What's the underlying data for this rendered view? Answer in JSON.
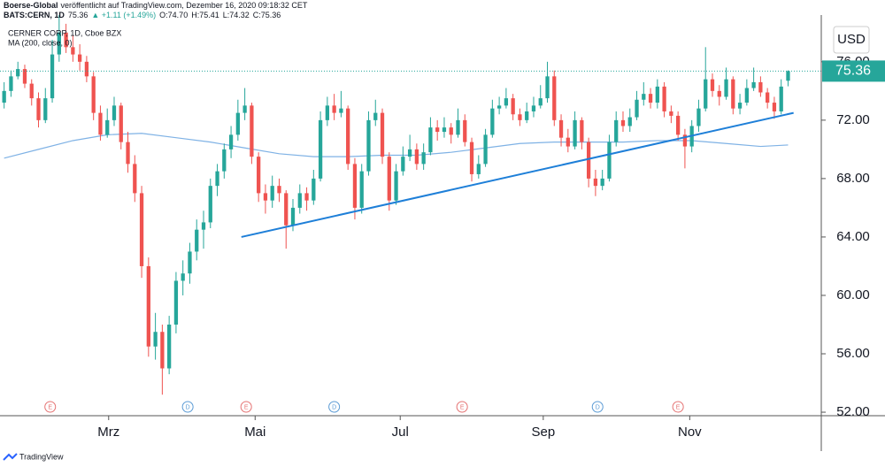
{
  "chart_data": {
    "type": "candlestick",
    "header": {
      "publisher": "Boerse-Global",
      "published": "veröffentlicht auf TradingView.com, Dezember 16, 2020 09:18:32 CET",
      "symbol": "BATS:CERN, 1D",
      "change": "▲ +1.11 (+1.49%)",
      "open": "O:74.70",
      "high": "H:75.41",
      "low": "L:74.32",
      "close": "C:75.36"
    },
    "title": "CERNER CORP, 1D, Cboe BZX",
    "currency": "USD",
    "footer": "TradingView",
    "up_color": "#26a69a",
    "down_color": "#ef5350",
    "ohlc": [
      [
        73.2,
        74.6,
        72.8,
        74
      ],
      [
        74,
        75.4,
        73.6,
        75
      ],
      [
        75,
        76,
        74.8,
        75.5
      ],
      [
        75.5,
        75.8,
        74.2,
        74.5
      ],
      [
        74.5,
        74.8,
        73,
        73.5
      ],
      [
        73.5,
        73.9,
        71.5,
        72
      ],
      [
        72,
        74.2,
        71.8,
        73.5
      ],
      [
        73.5,
        77.5,
        73.2,
        76.5
      ],
      [
        76.5,
        80,
        76,
        78
      ],
      [
        78,
        78.6,
        76.6,
        77
      ],
      [
        77,
        77.8,
        76,
        76.5
      ],
      [
        76.5,
        77.2,
        75.4,
        76
      ],
      [
        76,
        76.4,
        74.6,
        75
      ],
      [
        75,
        75.3,
        72,
        72.5
      ],
      [
        72.5,
        73,
        70.6,
        71
      ],
      [
        71,
        72.8,
        70.8,
        72
      ],
      [
        72,
        73.6,
        71.6,
        73
      ],
      [
        73,
        73.2,
        70,
        70.5
      ],
      [
        70.5,
        71.2,
        68.4,
        69
      ],
      [
        69,
        69.6,
        66.4,
        67
      ],
      [
        67,
        67.5,
        61.2,
        62
      ],
      [
        62,
        62.6,
        55.8,
        56.5
      ],
      [
        56.5,
        58.8,
        55.6,
        57.5
      ],
      [
        57.5,
        58,
        53.2,
        55
      ],
      [
        55,
        58.6,
        54.6,
        58
      ],
      [
        58,
        61.6,
        57.4,
        61
      ],
      [
        61,
        62.4,
        60,
        61.5
      ],
      [
        61.5,
        63.6,
        60.8,
        63
      ],
      [
        63,
        65.2,
        62.4,
        64.5
      ],
      [
        64.5,
        65.8,
        63.2,
        65
      ],
      [
        65,
        68,
        64.6,
        67.5
      ],
      [
        67.5,
        69,
        66.8,
        68.5
      ],
      [
        68.5,
        70.4,
        68,
        70
      ],
      [
        70,
        71.6,
        69.4,
        71
      ],
      [
        71,
        73.4,
        70.6,
        72.5
      ],
      [
        72.5,
        74.2,
        72,
        73
      ],
      [
        73,
        73.2,
        69,
        69.5
      ],
      [
        69.5,
        69.8,
        66.4,
        67
      ],
      [
        67,
        67.6,
        65.6,
        66.5
      ],
      [
        66.5,
        68.2,
        66,
        67.5
      ],
      [
        67.5,
        68,
        66.4,
        67
      ],
      [
        67,
        67.2,
        63.2,
        64.8
      ],
      [
        64.8,
        66.6,
        64.4,
        66
      ],
      [
        66,
        67.6,
        65.6,
        67
      ],
      [
        67,
        67.4,
        65.8,
        66.5
      ],
      [
        66.5,
        68.6,
        66.2,
        68
      ],
      [
        68,
        72.6,
        67.8,
        72
      ],
      [
        72,
        73.6,
        71.6,
        73
      ],
      [
        73,
        73.8,
        72,
        72.5
      ],
      [
        72.5,
        74,
        72.2,
        72.8
      ],
      [
        72.8,
        73,
        68.6,
        69
      ],
      [
        69,
        69.4,
        65.2,
        66
      ],
      [
        66,
        69,
        65.6,
        68.5
      ],
      [
        68.5,
        72.6,
        68.2,
        72
      ],
      [
        72,
        73.4,
        71.6,
        72.5
      ],
      [
        72.5,
        72.8,
        69,
        69.5
      ],
      [
        69.5,
        69.8,
        65.8,
        66.5
      ],
      [
        66.5,
        69,
        66.2,
        68.5
      ],
      [
        68.5,
        70.2,
        68.2,
        69.5
      ],
      [
        69.5,
        71,
        69.2,
        70
      ],
      [
        70,
        70.4,
        68.6,
        69
      ],
      [
        69,
        70.4,
        68.6,
        69.8
      ],
      [
        69.8,
        72.2,
        69.6,
        71.5
      ],
      [
        71.5,
        72,
        70.6,
        71.2
      ],
      [
        71.2,
        72.2,
        70.8,
        71.5
      ],
      [
        71.5,
        71.8,
        70.4,
        71
      ],
      [
        71,
        72.8,
        70.8,
        72
      ],
      [
        72,
        72.4,
        70.2,
        70.5
      ],
      [
        70.5,
        70.8,
        67.8,
        68.3
      ],
      [
        68.3,
        69.6,
        68,
        69
      ],
      [
        69,
        71.4,
        68.8,
        71
      ],
      [
        71,
        73.4,
        70.8,
        72.8
      ],
      [
        72.8,
        73.6,
        72.4,
        73
      ],
      [
        73,
        74.2,
        72.8,
        73.5
      ],
      [
        73.5,
        73.8,
        72,
        72.4
      ],
      [
        72.4,
        72.8,
        71.6,
        72
      ],
      [
        72,
        73.2,
        71.8,
        72.6
      ],
      [
        72.6,
        73.6,
        72.2,
        73
      ],
      [
        73,
        74.4,
        72.8,
        73.5
      ],
      [
        73.5,
        76,
        73.2,
        75
      ],
      [
        75,
        75.4,
        71.6,
        72
      ],
      [
        72,
        72.4,
        70.2,
        70.8
      ],
      [
        70.8,
        71.4,
        69.8,
        70.2
      ],
      [
        70.2,
        72.6,
        70,
        72
      ],
      [
        72,
        72.2,
        70,
        70.5
      ],
      [
        70.5,
        70.8,
        67.4,
        68
      ],
      [
        68,
        68.6,
        66.8,
        67.5
      ],
      [
        67.5,
        68.6,
        67.2,
        68
      ],
      [
        68,
        71,
        67.8,
        70.5
      ],
      [
        70.5,
        72.6,
        70.2,
        72
      ],
      [
        72,
        72.6,
        71.2,
        71.6
      ],
      [
        71.6,
        72.8,
        71.2,
        72.2
      ],
      [
        72.2,
        74,
        72,
        73.4
      ],
      [
        73.4,
        74.6,
        73,
        73.8
      ],
      [
        73.8,
        74.2,
        72.8,
        73.2
      ],
      [
        73.2,
        74.8,
        72.8,
        74.3
      ],
      [
        74.3,
        74.6,
        72.2,
        72.6
      ],
      [
        72.6,
        73,
        71.8,
        72.3
      ],
      [
        72.3,
        72.6,
        70.6,
        71
      ],
      [
        71,
        71.4,
        68.7,
        70.2
      ],
      [
        70.2,
        72,
        69.8,
        71.6
      ],
      [
        71.6,
        73.4,
        71.2,
        72.8
      ],
      [
        72.8,
        77,
        72.6,
        74.8
      ],
      [
        74.8,
        75.2,
        73.6,
        74
      ],
      [
        74,
        74.4,
        73,
        73.6
      ],
      [
        73.6,
        75.6,
        73.4,
        74.8
      ],
      [
        74.8,
        75,
        72.4,
        72.8
      ],
      [
        72.8,
        73.8,
        72.4,
        73.2
      ],
      [
        73.2,
        74.8,
        73,
        74.2
      ],
      [
        74.2,
        75.6,
        74,
        74.6
      ],
      [
        74.6,
        75,
        73.6,
        73.9
      ],
      [
        73.9,
        74.2,
        72.8,
        73.2
      ],
      [
        73.2,
        73.6,
        72.1,
        72.6
      ],
      [
        72.6,
        74.8,
        72.4,
        74.3
      ],
      [
        74.7,
        75.41,
        74.32,
        75.36
      ]
    ],
    "ma": {
      "name": "MA (200, close, 0)",
      "color": "#7fb2e5",
      "x": [
        0,
        5,
        10,
        15,
        20,
        25,
        30,
        35,
        40,
        45,
        50,
        55,
        60,
        65,
        70,
        75,
        80,
        85,
        90,
        95,
        100,
        105,
        110,
        114
      ],
      "values": [
        69.4,
        70.0,
        70.6,
        71.0,
        71.1,
        70.8,
        70.5,
        70.1,
        69.7,
        69.5,
        69.5,
        69.6,
        69.6,
        69.8,
        70.1,
        70.4,
        70.5,
        70.5,
        70.5,
        70.6,
        70.6,
        70.4,
        70.2,
        70.3
      ]
    },
    "trendline": {
      "color": "#1e7fd8",
      "x": [
        34.5,
        114.8
      ],
      "values": [
        64.0,
        72.5
      ]
    },
    "events": [
      {
        "x": 6.7,
        "label": "E",
        "color": "#e57373"
      },
      {
        "x": 26.7,
        "label": "D",
        "color": "#5b9bd5"
      },
      {
        "x": 35.2,
        "label": "E",
        "color": "#e57373"
      },
      {
        "x": 48.0,
        "label": "D",
        "color": "#5b9bd5"
      },
      {
        "x": 66.6,
        "label": "E",
        "color": "#e57373"
      },
      {
        "x": 86.3,
        "label": "D",
        "color": "#5b9bd5"
      },
      {
        "x": 98.0,
        "label": "E",
        "color": "#e57373"
      }
    ],
    "xlim": [
      -0.6,
      118.83
    ],
    "xticks": [
      {
        "value": 15.2,
        "label": "Mrz"
      },
      {
        "value": 36.5,
        "label": "Mai"
      },
      {
        "value": 57.6,
        "label": "Jul"
      },
      {
        "value": 78.4,
        "label": "Sep"
      },
      {
        "value": 99.7,
        "label": "Nov"
      }
    ],
    "ylim": [
      51.76,
      79.2
    ],
    "yticks": [
      {
        "value": 52,
        "label": "52.00"
      },
      {
        "value": 56,
        "label": "56.00"
      },
      {
        "value": 60,
        "label": "60.00"
      },
      {
        "value": 64,
        "label": "64.00"
      },
      {
        "value": 68,
        "label": "68.00"
      },
      {
        "value": 72,
        "label": "72.00"
      },
      {
        "value": 76,
        "label": "76.00"
      }
    ]
  }
}
